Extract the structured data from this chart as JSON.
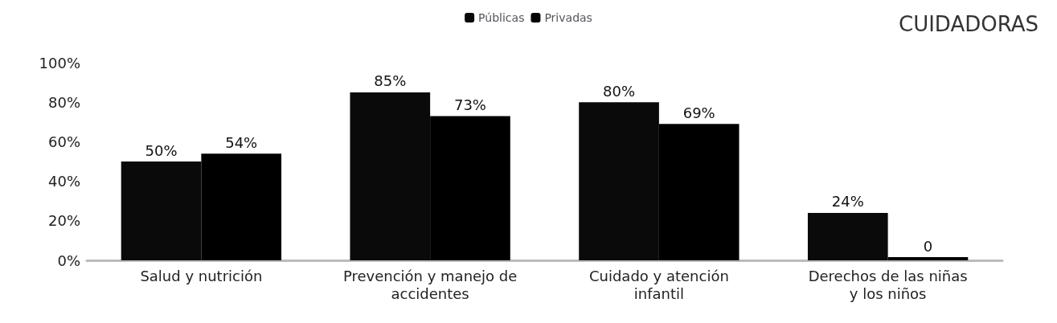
{
  "chart_data": {
    "type": "bar",
    "title": "CUIDADORAS",
    "categories": [
      "Salud y nutrición",
      "Prevención y manejo de accidentes",
      "Cuidado y atención infantil",
      "Derechos de las niñas y los niños"
    ],
    "series": [
      {
        "name": "Públicas",
        "color": "#0a0a0a",
        "values": [
          50,
          85,
          80,
          24
        ],
        "value_labels": [
          "50%",
          "85%",
          "80%",
          "24%"
        ]
      },
      {
        "name": "Privadas",
        "color": "#000000",
        "values": [
          54,
          73,
          69,
          0
        ],
        "value_labels": [
          "54%",
          "73%",
          "69%",
          "0"
        ]
      }
    ],
    "ylim": [
      0,
      100
    ],
    "yticks": [
      {
        "value": 0,
        "label": "0%"
      },
      {
        "value": 20,
        "label": "20%"
      },
      {
        "value": 40,
        "label": "40%"
      },
      {
        "value": 60,
        "label": "60%"
      },
      {
        "value": 80,
        "label": "80%"
      },
      {
        "value": 100,
        "label": "100%"
      }
    ],
    "grid": false,
    "legend": "top"
  }
}
